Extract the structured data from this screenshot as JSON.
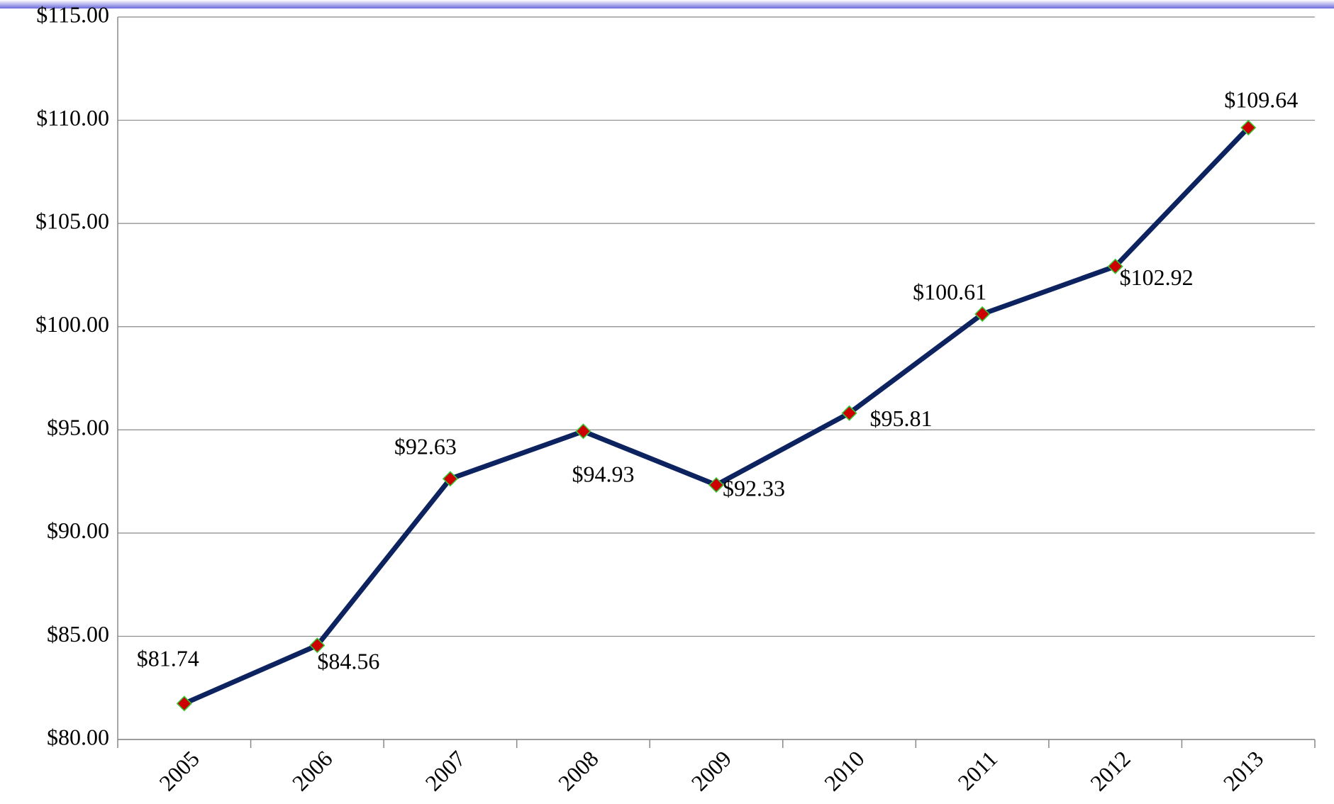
{
  "chart_data": {
    "type": "line",
    "categories": [
      "2005",
      "2006",
      "2007",
      "2008",
      "2009",
      "2010",
      "2011",
      "2012",
      "2013"
    ],
    "values": [
      81.74,
      84.56,
      92.63,
      94.93,
      92.33,
      95.81,
      100.61,
      102.92,
      109.64
    ],
    "value_labels": [
      "$81.74",
      "$84.56",
      "$92.63",
      "$94.93",
      "$92.33",
      "$95.81",
      "$100.61",
      "$102.92",
      "$109.64"
    ],
    "color": "#0d2360",
    "marker_color": "#cc0000",
    "ylim": [
      80,
      115
    ],
    "yticks": [
      {
        "value": 80,
        "label": "$80.00"
      },
      {
        "value": 85,
        "label": "$85.00"
      },
      {
        "value": 90,
        "label": "$90.00"
      },
      {
        "value": 95,
        "label": "$95.00"
      },
      {
        "value": 100,
        "label": "$100.00"
      },
      {
        "value": 105,
        "label": "$105.00"
      },
      {
        "value": 110,
        "label": "$110.00"
      },
      {
        "value": 115,
        "label": "$115.00"
      }
    ],
    "grid": true
  }
}
